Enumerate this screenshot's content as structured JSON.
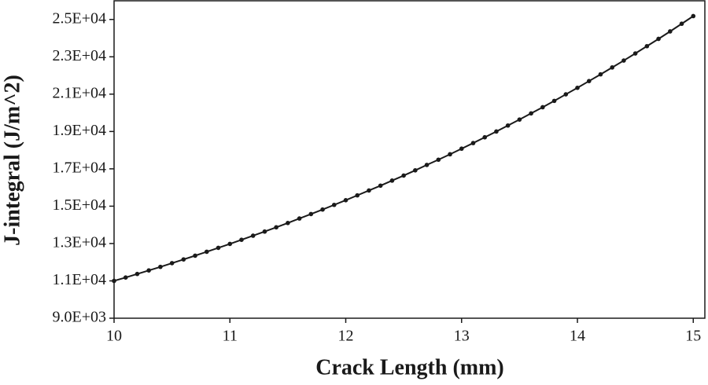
{
  "chart_data": {
    "type": "line",
    "xlabel": "Crack Length (mm)",
    "ylabel": "J-integral (J/m^2)",
    "x": [
      10.0,
      10.1,
      10.2,
      10.3,
      10.4,
      10.5,
      10.6,
      10.7,
      10.8,
      10.9,
      11.0,
      11.1,
      11.2,
      11.3,
      11.4,
      11.5,
      11.6,
      11.7,
      11.8,
      11.9,
      12.0,
      12.1,
      12.2,
      12.3,
      12.4,
      12.5,
      12.6,
      12.7,
      12.8,
      12.9,
      13.0,
      13.1,
      13.2,
      13.3,
      13.4,
      13.5,
      13.6,
      13.7,
      13.8,
      13.9,
      14.0,
      14.1,
      14.2,
      14.3,
      14.4,
      14.5,
      14.6,
      14.7,
      14.8,
      14.9,
      15.0
    ],
    "series": [
      {
        "color": "#1a1a1a",
        "values": [
          11000,
          11180,
          11370,
          11560,
          11750,
          11950,
          12150,
          12350,
          12560,
          12770,
          12980,
          13200,
          13420,
          13640,
          13870,
          14100,
          14340,
          14580,
          14820,
          15070,
          15320,
          15580,
          15840,
          16100,
          16370,
          16640,
          16920,
          17210,
          17490,
          17780,
          18080,
          18380,
          18690,
          19000,
          19320,
          19640,
          19970,
          20300,
          20640,
          20990,
          21340,
          21700,
          22060,
          22430,
          22800,
          23180,
          23570,
          23960,
          24360,
          24770,
          25180
        ]
      }
    ],
    "xlim": [
      10,
      15.1
    ],
    "ylim": [
      9000,
      26000
    ],
    "xticks": [
      10,
      11,
      12,
      13,
      14,
      15
    ],
    "yticks": [
      {
        "value": 9000,
        "label": "9.0E+03"
      },
      {
        "value": 11000,
        "label": "1.1E+04"
      },
      {
        "value": 13000,
        "label": "1.3E+04"
      },
      {
        "value": 15000,
        "label": "1.5E+04"
      },
      {
        "value": 17000,
        "label": "1.7E+04"
      },
      {
        "value": 19000,
        "label": "1.9E+04"
      },
      {
        "value": 21000,
        "label": "2.1E+04"
      },
      {
        "value": 23000,
        "label": "2.3E+04"
      },
      {
        "value": 25000,
        "label": "2.5E+04"
      }
    ]
  }
}
